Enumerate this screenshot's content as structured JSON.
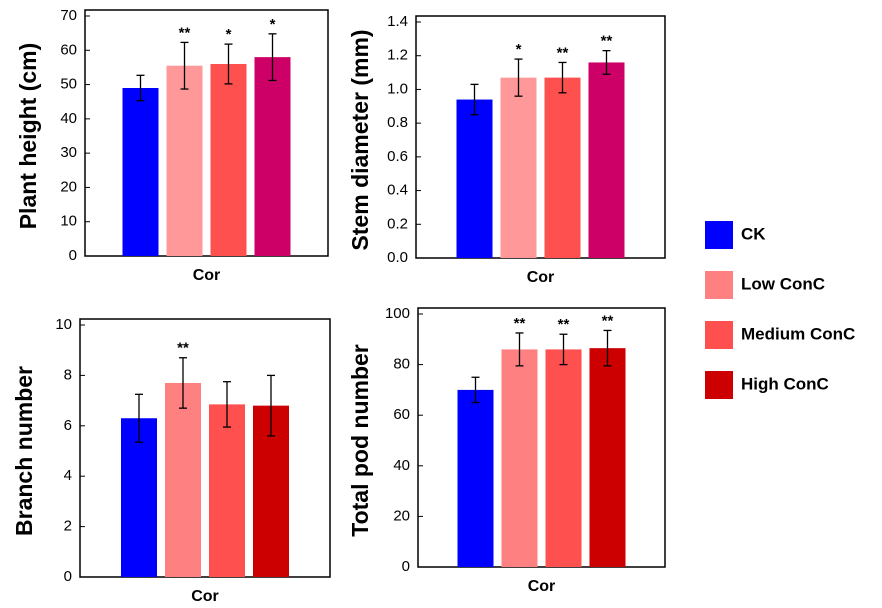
{
  "chart_data": [
    {
      "type": "bar",
      "ylabel": "Plant height (cm)",
      "categories": [
        "Cor"
      ],
      "ylim": [
        0,
        70
      ],
      "yticks": [
        0,
        10,
        20,
        30,
        40,
        50,
        60,
        70
      ],
      "series": [
        {
          "name": "CK",
          "color": "#0000ff",
          "values": [
            49
          ],
          "errors": [
            3.7
          ],
          "significance": [
            null
          ]
        },
        {
          "name": "Low ConC",
          "color": "#ff9999",
          "values": [
            55.5
          ],
          "errors": [
            6.8
          ],
          "significance": [
            "**"
          ]
        },
        {
          "name": "Medium ConC",
          "color": "#ff5050",
          "values": [
            56
          ],
          "errors": [
            5.8
          ],
          "significance": [
            "*"
          ]
        },
        {
          "name": "High ConC",
          "color": "#cc0066",
          "values": [
            58
          ],
          "errors": [
            6.8
          ],
          "significance": [
            "*"
          ]
        }
      ]
    },
    {
      "type": "bar",
      "ylabel": "Stem diameter (mm)",
      "categories": [
        "Cor"
      ],
      "ylim": [
        0,
        1.4
      ],
      "yticks": [
        {
          "value": 0,
          "label": "0.0"
        },
        0.2,
        0.4,
        0.6,
        0.8,
        {
          "value": 1,
          "label": "1.0"
        },
        1.2,
        1.4
      ],
      "series": [
        {
          "name": "CK",
          "color": "#0000ff",
          "values": [
            0.94
          ],
          "errors": [
            0.09
          ],
          "significance": [
            null
          ]
        },
        {
          "name": "Low ConC",
          "color": "#ff9999",
          "values": [
            1.07
          ],
          "errors": [
            0.11
          ],
          "significance": [
            "*"
          ]
        },
        {
          "name": "Medium ConC",
          "color": "#ff5050",
          "values": [
            1.07
          ],
          "errors": [
            0.09
          ],
          "significance": [
            "**"
          ]
        },
        {
          "name": "High ConC",
          "color": "#cc0066",
          "values": [
            1.16
          ],
          "errors": [
            0.07
          ],
          "significance": [
            "**"
          ]
        }
      ]
    },
    {
      "type": "bar",
      "ylabel": "Branch number",
      "categories": [
        "Cor"
      ],
      "ylim": [
        0,
        10
      ],
      "yticks": [
        0,
        2,
        4,
        6,
        8,
        10
      ],
      "series": [
        {
          "name": "CK",
          "color": "#0000ff",
          "values": [
            6.3
          ],
          "errors": [
            0.95
          ],
          "significance": [
            null
          ]
        },
        {
          "name": "Low ConC",
          "color": "#ff8080",
          "values": [
            7.7
          ],
          "errors": [
            1.0
          ],
          "significance": [
            "**"
          ]
        },
        {
          "name": "Medium ConC",
          "color": "#ff5050",
          "values": [
            6.85
          ],
          "errors": [
            0.9
          ],
          "significance": [
            null
          ]
        },
        {
          "name": "High ConC",
          "color": "#cc0000",
          "values": [
            6.8
          ],
          "errors": [
            1.2
          ],
          "significance": [
            null
          ]
        }
      ]
    },
    {
      "type": "bar",
      "ylabel": "Total pod number",
      "categories": [
        "Cor"
      ],
      "ylim": [
        0,
        100
      ],
      "yticks": [
        0,
        20,
        40,
        60,
        80,
        100
      ],
      "series": [
        {
          "name": "CK",
          "color": "#0000ff",
          "values": [
            70
          ],
          "errors": [
            5
          ],
          "significance": [
            null
          ]
        },
        {
          "name": "Low ConC",
          "color": "#ff8080",
          "values": [
            86
          ],
          "errors": [
            6.5
          ],
          "significance": [
            "**"
          ]
        },
        {
          "name": "Medium ConC",
          "color": "#ff5050",
          "values": [
            86
          ],
          "errors": [
            6
          ],
          "significance": [
            "**"
          ]
        },
        {
          "name": "High ConC",
          "color": "#cc0000",
          "values": [
            86.5
          ],
          "errors": [
            7
          ],
          "significance": [
            "**"
          ]
        }
      ]
    }
  ]
}
